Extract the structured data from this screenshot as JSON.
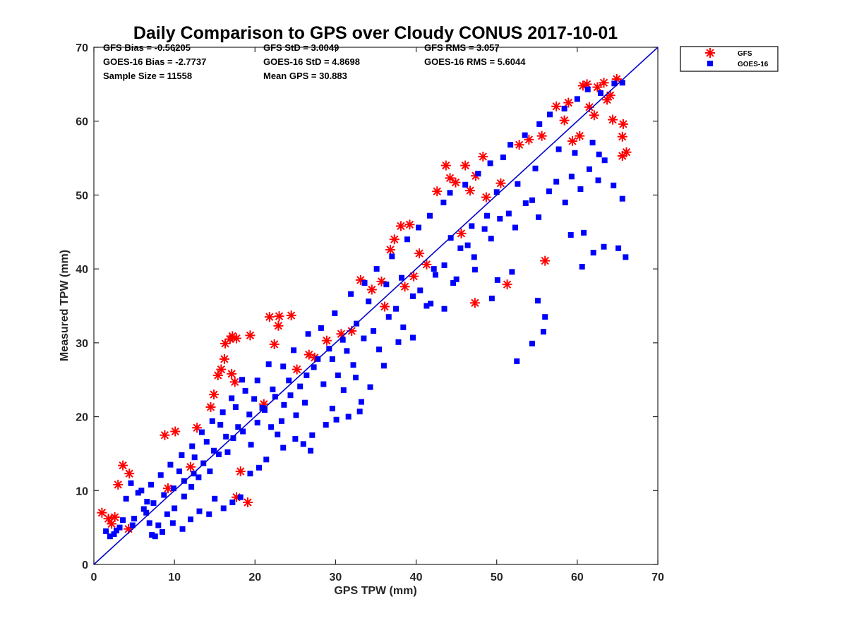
{
  "chart_data": {
    "type": "scatter",
    "title": "Daily Comparison to GPS over Cloudy CONUS 2017-10-01",
    "xlabel": "GPS TPW (mm)",
    "ylabel": "Measured TPW (mm)",
    "xlim": [
      0,
      70
    ],
    "ylim": [
      0,
      70
    ],
    "xticks": [
      0,
      10,
      20,
      30,
      40,
      50,
      60,
      70
    ],
    "yticks": [
      0,
      10,
      20,
      30,
      40,
      50,
      60,
      70
    ],
    "grid": false,
    "legend_position": "outside-top-right",
    "reference_line": {
      "name": "1:1 line",
      "x": [
        0,
        70
      ],
      "y": [
        0,
        70
      ],
      "color": "#0000cc"
    },
    "stats": {
      "gfs_bias": "GFS Bias = -0.56205",
      "goes_bias": "GOES-16 Bias = -2.7737",
      "sample_size": "Sample Size = 11558",
      "gfs_std": "GFS StD = 3.0049",
      "goes_std": "GOES-16 StD = 4.8698",
      "mean_gps": "Mean GPS = 30.883",
      "gfs_rms": "GFS RMS = 3.057",
      "goes_rms": "GOES-16 RMS = 5.6044"
    },
    "series": [
      {
        "name": "GFS",
        "marker": "asterisk",
        "color": "#ff0000",
        "points": [
          [
            1.0,
            7.0
          ],
          [
            1.8,
            6.2
          ],
          [
            2.2,
            5.5
          ],
          [
            2.6,
            6.4
          ],
          [
            3.0,
            10.8
          ],
          [
            3.6,
            13.4
          ],
          [
            4.4,
            12.3
          ],
          [
            4.3,
            4.8
          ],
          [
            8.8,
            17.5
          ],
          [
            10.1,
            18.0
          ],
          [
            12.8,
            18.5
          ],
          [
            14.5,
            21.3
          ],
          [
            14.9,
            23.0
          ],
          [
            15.4,
            25.6
          ],
          [
            15.8,
            26.4
          ],
          [
            16.2,
            27.8
          ],
          [
            16.3,
            29.9
          ],
          [
            16.9,
            30.5
          ],
          [
            17.2,
            30.9
          ],
          [
            17.7,
            30.6
          ],
          [
            17.1,
            25.8
          ],
          [
            17.5,
            24.7
          ],
          [
            18.2,
            12.6
          ],
          [
            17.7,
            9.1
          ],
          [
            19.1,
            8.4
          ],
          [
            19.4,
            31.0
          ],
          [
            21.8,
            33.5
          ],
          [
            23.0,
            33.6
          ],
          [
            22.9,
            32.3
          ],
          [
            24.5,
            33.7
          ],
          [
            22.4,
            29.8
          ],
          [
            26.7,
            28.4
          ],
          [
            33.1,
            38.5
          ],
          [
            34.5,
            37.2
          ],
          [
            35.7,
            38.3
          ],
          [
            36.8,
            42.6
          ],
          [
            37.3,
            44.0
          ],
          [
            38.1,
            45.8
          ],
          [
            39.2,
            46.0
          ],
          [
            40.4,
            42.1
          ],
          [
            42.6,
            50.5
          ],
          [
            43.7,
            54.0
          ],
          [
            44.2,
            52.3
          ],
          [
            44.9,
            51.7
          ],
          [
            46.1,
            54.0
          ],
          [
            46.7,
            50.6
          ],
          [
            47.4,
            52.6
          ],
          [
            48.3,
            55.2
          ],
          [
            47.3,
            35.4
          ],
          [
            51.3,
            37.9
          ],
          [
            52.8,
            56.8
          ],
          [
            54.0,
            57.5
          ],
          [
            55.6,
            58.0
          ],
          [
            56.0,
            41.1
          ],
          [
            57.4,
            62.0
          ],
          [
            58.9,
            62.5
          ],
          [
            60.7,
            64.8
          ],
          [
            61.2,
            65.0
          ],
          [
            62.5,
            64.6
          ],
          [
            63.3,
            65.2
          ],
          [
            64.1,
            63.5
          ],
          [
            64.9,
            65.7
          ],
          [
            65.7,
            59.6
          ],
          [
            65.6,
            55.3
          ],
          [
            66.1,
            55.8
          ],
          [
            65.6,
            57.9
          ],
          [
            64.4,
            60.2
          ],
          [
            62.1,
            60.8
          ],
          [
            61.5,
            61.9
          ],
          [
            63.7,
            62.9
          ],
          [
            60.3,
            58.0
          ],
          [
            59.4,
            57.3
          ],
          [
            58.4,
            60.1
          ],
          [
            38.6,
            37.6
          ],
          [
            36.1,
            34.9
          ],
          [
            41.3,
            40.6
          ],
          [
            45.6,
            44.8
          ],
          [
            48.7,
            49.7
          ],
          [
            30.7,
            31.2
          ],
          [
            28.9,
            30.3
          ],
          [
            21.1,
            21.7
          ],
          [
            9.2,
            10.3
          ],
          [
            12.0,
            13.2
          ],
          [
            25.2,
            26.4
          ],
          [
            27.4,
            28.0
          ],
          [
            32.0,
            31.6
          ],
          [
            39.7,
            39.0
          ],
          [
            50.5,
            51.6
          ]
        ]
      },
      {
        "name": "GOES-16",
        "marker": "square",
        "color": "#0000ff",
        "points": [
          [
            1.5,
            4.5
          ],
          [
            2.0,
            3.8
          ],
          [
            2.5,
            4.1
          ],
          [
            5.0,
            6.2
          ],
          [
            6.5,
            7.0
          ],
          [
            7.2,
            4.0
          ],
          [
            8.0,
            5.3
          ],
          [
            9.1,
            6.8
          ],
          [
            10.0,
            7.6
          ],
          [
            11.2,
            9.2
          ],
          [
            12.1,
            10.5
          ],
          [
            13.0,
            11.8
          ],
          [
            14.4,
            12.6
          ],
          [
            15.5,
            14.9
          ],
          [
            16.6,
            15.2
          ],
          [
            17.3,
            17.1
          ],
          [
            18.5,
            18.0
          ],
          [
            19.5,
            16.2
          ],
          [
            20.3,
            19.2
          ],
          [
            21.2,
            20.9
          ],
          [
            22.0,
            18.6
          ],
          [
            23.6,
            21.6
          ],
          [
            24.4,
            22.9
          ],
          [
            25.6,
            24.1
          ],
          [
            26.2,
            21.9
          ],
          [
            27.3,
            26.7
          ],
          [
            28.5,
            24.4
          ],
          [
            29.6,
            27.8
          ],
          [
            30.3,
            25.6
          ],
          [
            31.4,
            28.9
          ],
          [
            32.2,
            27.0
          ],
          [
            33.5,
            30.6
          ],
          [
            34.7,
            31.6
          ],
          [
            35.4,
            29.1
          ],
          [
            36.6,
            33.5
          ],
          [
            37.5,
            34.6
          ],
          [
            38.4,
            32.1
          ],
          [
            39.6,
            36.3
          ],
          [
            40.5,
            37.1
          ],
          [
            41.3,
            35.0
          ],
          [
            42.4,
            39.2
          ],
          [
            43.5,
            40.5
          ],
          [
            44.6,
            38.1
          ],
          [
            45.5,
            42.8
          ],
          [
            46.4,
            43.2
          ],
          [
            47.2,
            41.6
          ],
          [
            48.5,
            45.4
          ],
          [
            49.3,
            44.1
          ],
          [
            50.4,
            46.8
          ],
          [
            51.5,
            47.5
          ],
          [
            52.3,
            45.6
          ],
          [
            53.6,
            48.9
          ],
          [
            54.4,
            49.3
          ],
          [
            55.2,
            47.0
          ],
          [
            56.5,
            50.5
          ],
          [
            57.4,
            51.8
          ],
          [
            58.5,
            49.0
          ],
          [
            59.3,
            52.5
          ],
          [
            60.4,
            50.8
          ],
          [
            61.5,
            53.5
          ],
          [
            62.6,
            52.0
          ],
          [
            63.4,
            54.7
          ],
          [
            64.5,
            51.3
          ],
          [
            65.6,
            49.5
          ],
          [
            66.0,
            41.6
          ],
          [
            65.1,
            42.8
          ],
          [
            63.3,
            43.0
          ],
          [
            62.0,
            42.2
          ],
          [
            60.8,
            44.9
          ],
          [
            60.6,
            40.3
          ],
          [
            62.7,
            55.5
          ],
          [
            64.6,
            65.1
          ],
          [
            65.6,
            65.2
          ],
          [
            59.2,
            44.6
          ],
          [
            56.0,
            33.5
          ],
          [
            55.8,
            31.5
          ],
          [
            55.1,
            35.7
          ],
          [
            54.4,
            29.9
          ],
          [
            52.5,
            27.5
          ],
          [
            51.9,
            39.6
          ],
          [
            50.1,
            38.5
          ],
          [
            49.4,
            36.0
          ],
          [
            47.3,
            39.9
          ],
          [
            45.0,
            38.6
          ],
          [
            43.5,
            34.6
          ],
          [
            41.8,
            35.3
          ],
          [
            39.6,
            30.7
          ],
          [
            37.8,
            30.1
          ],
          [
            36.0,
            26.9
          ],
          [
            34.3,
            24.0
          ],
          [
            33.2,
            22.0
          ],
          [
            31.6,
            20.0
          ],
          [
            30.1,
            19.6
          ],
          [
            28.8,
            18.9
          ],
          [
            27.1,
            17.5
          ],
          [
            26.0,
            16.3
          ],
          [
            25.0,
            17.0
          ],
          [
            23.5,
            15.8
          ],
          [
            22.8,
            17.6
          ],
          [
            21.4,
            14.2
          ],
          [
            20.5,
            13.1
          ],
          [
            19.4,
            12.3
          ],
          [
            18.2,
            9.1
          ],
          [
            17.2,
            8.4
          ],
          [
            16.1,
            7.6
          ],
          [
            15.0,
            8.9
          ],
          [
            14.3,
            6.8
          ],
          [
            13.1,
            7.2
          ],
          [
            12.0,
            6.1
          ],
          [
            11.0,
            4.8
          ],
          [
            9.8,
            5.6
          ],
          [
            8.5,
            4.4
          ],
          [
            7.6,
            3.8
          ],
          [
            6.6,
            8.5
          ],
          [
            5.5,
            9.7
          ],
          [
            4.6,
            11.0
          ],
          [
            4.0,
            8.9
          ],
          [
            3.6,
            6.0
          ],
          [
            10.6,
            12.6
          ],
          [
            12.5,
            14.5
          ],
          [
            14.0,
            16.6
          ],
          [
            15.7,
            18.9
          ],
          [
            17.6,
            21.3
          ],
          [
            18.8,
            23.5
          ],
          [
            20.3,
            24.9
          ],
          [
            21.7,
            27.1
          ],
          [
            23.5,
            26.8
          ],
          [
            24.8,
            29.0
          ],
          [
            26.6,
            31.2
          ],
          [
            28.2,
            32.0
          ],
          [
            29.9,
            34.0
          ],
          [
            31.9,
            36.6
          ],
          [
            33.6,
            38.1
          ],
          [
            35.1,
            40.0
          ],
          [
            37.0,
            41.7
          ],
          [
            38.9,
            44.0
          ],
          [
            40.3,
            45.6
          ],
          [
            41.7,
            47.2
          ],
          [
            43.4,
            49.0
          ],
          [
            44.2,
            50.3
          ],
          [
            46.1,
            51.4
          ],
          [
            47.7,
            52.9
          ],
          [
            49.2,
            54.3
          ],
          [
            50.8,
            55.1
          ],
          [
            51.7,
            56.8
          ],
          [
            53.5,
            58.1
          ],
          [
            55.3,
            59.6
          ],
          [
            56.6,
            60.9
          ],
          [
            58.4,
            61.7
          ],
          [
            60.0,
            63.0
          ],
          [
            61.3,
            64.3
          ],
          [
            62.9,
            63.8
          ],
          [
            42.2,
            40.0
          ],
          [
            44.3,
            44.2
          ],
          [
            46.9,
            45.8
          ],
          [
            48.8,
            47.2
          ],
          [
            50.0,
            50.4
          ],
          [
            52.6,
            51.5
          ],
          [
            54.8,
            53.6
          ],
          [
            57.7,
            56.2
          ],
          [
            59.7,
            55.7
          ],
          [
            61.9,
            57.1
          ],
          [
            38.2,
            38.8
          ],
          [
            36.3,
            37.9
          ],
          [
            34.1,
            35.6
          ],
          [
            32.6,
            32.6
          ],
          [
            30.9,
            30.4
          ],
          [
            29.2,
            29.2
          ],
          [
            27.8,
            27.8
          ],
          [
            26.4,
            25.6
          ],
          [
            24.2,
            24.9
          ],
          [
            22.5,
            22.7
          ],
          [
            20.9,
            21.2
          ],
          [
            19.3,
            20.3
          ],
          [
            17.9,
            18.6
          ],
          [
            16.4,
            17.3
          ],
          [
            14.9,
            15.4
          ],
          [
            13.6,
            13.7
          ],
          [
            12.4,
            12.3
          ],
          [
            11.2,
            11.3
          ],
          [
            9.9,
            10.3
          ],
          [
            8.7,
            9.4
          ],
          [
            7.4,
            8.3
          ],
          [
            6.2,
            7.5
          ],
          [
            29.6,
            21.1
          ],
          [
            31.0,
            23.6
          ],
          [
            32.5,
            25.3
          ],
          [
            33.0,
            20.7
          ],
          [
            26.9,
            15.4
          ],
          [
            25.1,
            20.2
          ],
          [
            23.3,
            19.4
          ],
          [
            22.2,
            23.7
          ],
          [
            19.9,
            22.4
          ],
          [
            18.4,
            25.0
          ],
          [
            17.1,
            22.5
          ],
          [
            16.0,
            20.6
          ],
          [
            14.7,
            19.4
          ],
          [
            13.4,
            17.9
          ],
          [
            12.2,
            16.0
          ],
          [
            10.9,
            14.8
          ],
          [
            9.5,
            13.5
          ],
          [
            8.3,
            12.1
          ],
          [
            7.1,
            10.8
          ],
          [
            5.9,
            10.0
          ],
          [
            4.8,
            5.3
          ],
          [
            6.9,
            5.6
          ],
          [
            3.2,
            5.0
          ],
          [
            2.8,
            4.6
          ]
        ]
      }
    ]
  }
}
